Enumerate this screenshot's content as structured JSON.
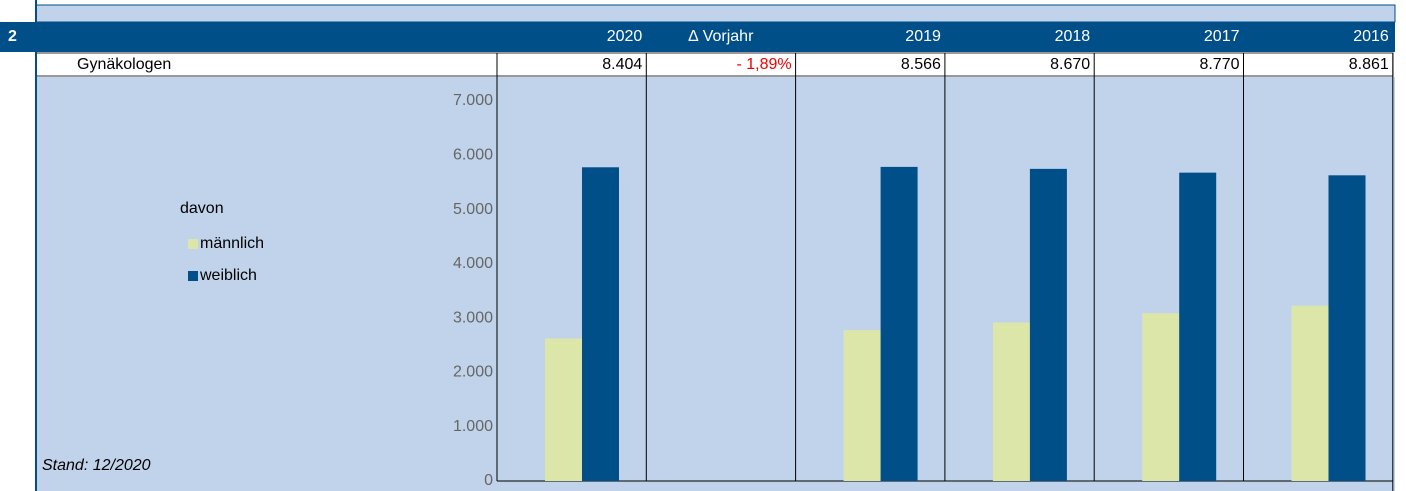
{
  "table": {
    "section": "2",
    "row_label": "Gynäkologen",
    "row_values": [
      "8.404",
      "- 1,89%",
      "8.566",
      "8.670",
      "8.770",
      "8.861"
    ]
  },
  "chart_data": {
    "type": "bar",
    "categories": [
      "2020",
      "∆ Vorjahr",
      "2019",
      "2018",
      "2017",
      "2016"
    ],
    "legend_title": "davon",
    "series": [
      {
        "name": "männlich",
        "color": "#dce6a8",
        "values": [
          2625,
          null,
          2780,
          2920,
          3090,
          3230
        ]
      },
      {
        "name": "weiblich",
        "color": "#004f89",
        "values": [
          5779,
          null,
          5786,
          5750,
          5680,
          5631
        ]
      }
    ],
    "ylim": [
      0,
      7000
    ],
    "yticks": [
      0,
      {
        "value": 1000,
        "label": "1.000"
      },
      {
        "value": 2000,
        "label": "2.000"
      },
      {
        "value": 3000,
        "label": "3.000"
      },
      {
        "value": 4000,
        "label": "4.000"
      },
      {
        "value": 5000,
        "label": "5.000"
      },
      {
        "value": 6000,
        "label": "6.000"
      },
      {
        "value": 7000,
        "label": "7.000"
      }
    ],
    "legend": "left",
    "footnote": "Stand: 12/2020"
  }
}
